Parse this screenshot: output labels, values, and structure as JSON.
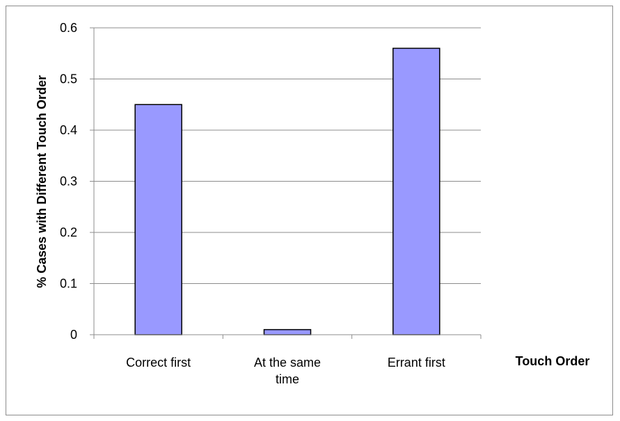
{
  "chart_data": {
    "type": "bar",
    "categories": [
      [
        "Correct first"
      ],
      [
        "At the same",
        "time"
      ],
      [
        "Errant first"
      ]
    ],
    "values": [
      0.45,
      0.01,
      0.56
    ],
    "title": "",
    "xlabel": "Touch Order",
    "ylabel": "% Cases  with Different Touch Order",
    "ylim": [
      0,
      0.6
    ],
    "yticks": [
      0,
      0.1,
      0.2,
      0.3,
      0.4,
      0.5,
      0.6
    ],
    "grid": true,
    "legend": "none",
    "colors": {
      "bar_fill": "#9999ff",
      "bar_stroke": "#000000",
      "grid": "#8c8c8c",
      "axis": "#8c8c8c"
    }
  }
}
